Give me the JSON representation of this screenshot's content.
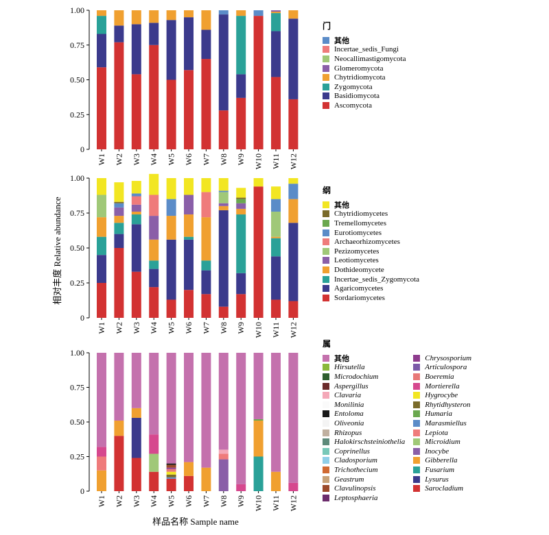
{
  "figure": {
    "ylabel": "相对丰度 Relative abundance",
    "xlabel": "样品名称 Sample name"
  },
  "chart_data": [
    {
      "type": "bar",
      "stacked": true,
      "title": "门",
      "categories": [
        "W1",
        "W2",
        "W3",
        "W4",
        "W5",
        "W6",
        "W7",
        "W8",
        "W9",
        "W10",
        "W11",
        "W12"
      ],
      "ylim": [
        0,
        1
      ],
      "yticks": [
        "0",
        "0.25",
        "0.50",
        "0.75",
        "1.00"
      ],
      "grid": false,
      "legend_position": "right",
      "series": [
        {
          "name": "Ascomycota",
          "color": "#d23232",
          "values": [
            0.59,
            0.77,
            0.54,
            0.75,
            0.5,
            0.57,
            0.65,
            0.28,
            0.37,
            0.96,
            0.52,
            0.36
          ]
        },
        {
          "name": "Basidiomycota",
          "color": "#3b3a8c",
          "values": [
            0.24,
            0.12,
            0.36,
            0.16,
            0.43,
            0.38,
            0.21,
            0.69,
            0.17,
            0.0,
            0.33,
            0.58
          ]
        },
        {
          "name": "Zygomycota",
          "color": "#2aa198",
          "values": [
            0.13,
            0.0,
            0.0,
            0.0,
            0.0,
            0.0,
            0.0,
            0.0,
            0.42,
            0.0,
            0.13,
            0.0
          ]
        },
        {
          "name": "Chytridiomycota",
          "color": "#f0a030",
          "values": [
            0.04,
            0.11,
            0.1,
            0.09,
            0.07,
            0.05,
            0.14,
            0.0,
            0.04,
            0.0,
            0.01,
            0.06
          ]
        },
        {
          "name": "Glomeromycota",
          "color": "#8a5fa8",
          "values": [
            0.0,
            0.0,
            0.0,
            0.0,
            0.0,
            0.0,
            0.0,
            0.0,
            0.0,
            0.0,
            0.01,
            0.0
          ]
        },
        {
          "name": "Neocallimastigomycota",
          "color": "#a0c878",
          "values": [
            0.0,
            0.0,
            0.0,
            0.0,
            0.0,
            0.0,
            0.0,
            0.0,
            0.0,
            0.0,
            0.0,
            0.0
          ]
        },
        {
          "name": "Incertae_sedis_Fungi",
          "color": "#ef7b7b",
          "values": [
            0.0,
            0.0,
            0.0,
            0.0,
            0.0,
            0.0,
            0.0,
            0.0,
            0.0,
            0.0,
            0.0,
            0.0
          ]
        },
        {
          "name": "其他",
          "color": "#5b8cc8",
          "values": [
            0.0,
            0.0,
            0.0,
            0.0,
            0.0,
            0.0,
            0.0,
            0.03,
            0.0,
            0.04,
            0.0,
            0.0
          ]
        }
      ]
    },
    {
      "type": "bar",
      "stacked": true,
      "title": "纲",
      "categories": [
        "W1",
        "W2",
        "W3",
        "W4",
        "W5",
        "W6",
        "W7",
        "W8",
        "W9",
        "W10",
        "W11",
        "W12"
      ],
      "ylim": [
        0,
        1
      ],
      "yticks": [
        "0",
        "0.25",
        "0.50",
        "0.75",
        "1.00"
      ],
      "grid": false,
      "legend_position": "right",
      "series": [
        {
          "name": "Sordariomycetes",
          "color": "#d23232",
          "values": [
            0.25,
            0.5,
            0.33,
            0.22,
            0.13,
            0.2,
            0.17,
            0.08,
            0.17,
            0.94,
            0.13,
            0.12
          ]
        },
        {
          "name": "Agaricomycetes",
          "color": "#3b3a8c",
          "values": [
            0.2,
            0.1,
            0.34,
            0.13,
            0.43,
            0.36,
            0.17,
            0.69,
            0.15,
            0.0,
            0.31,
            0.56
          ]
        },
        {
          "name": "Incertae_sedis_Zygomycota",
          "color": "#2aa198",
          "values": [
            0.13,
            0.08,
            0.07,
            0.06,
            0.0,
            0.02,
            0.07,
            0.0,
            0.42,
            0.0,
            0.13,
            0.0
          ]
        },
        {
          "name": "Dothideomycete",
          "color": "#f0a030",
          "values": [
            0.14,
            0.05,
            0.02,
            0.15,
            0.17,
            0.16,
            0.31,
            0.03,
            0.04,
            0.0,
            0.01,
            0.17
          ]
        },
        {
          "name": "Leotiomycetes",
          "color": "#8a5fa8",
          "values": [
            0.0,
            0.06,
            0.05,
            0.17,
            0.0,
            0.14,
            0.0,
            0.02,
            0.04,
            0.0,
            0.0,
            0.0
          ]
        },
        {
          "name": "Pezizomycetes",
          "color": "#a0c878",
          "values": [
            0.16,
            0.0,
            0.0,
            0.0,
            0.0,
            0.0,
            0.0,
            0.08,
            0.0,
            0.0,
            0.18,
            0.0
          ]
        },
        {
          "name": "Archaeorhizomycetes",
          "color": "#ef7b7b",
          "values": [
            0.0,
            0.0,
            0.06,
            0.15,
            0.0,
            0.0,
            0.18,
            0.0,
            0.0,
            0.0,
            0.0,
            0.0
          ]
        },
        {
          "name": "Eurotiomycetes",
          "color": "#5b8cc8",
          "values": [
            0.0,
            0.03,
            0.02,
            0.0,
            0.12,
            0.0,
            0.0,
            0.01,
            0.0,
            0.0,
            0.09,
            0.11
          ]
        },
        {
          "name": "Tremellomycetes",
          "color": "#6aa84f",
          "values": [
            0.0,
            0.0,
            0.0,
            0.0,
            0.0,
            0.0,
            0.0,
            0.0,
            0.03,
            0.0,
            0.0,
            0.0
          ]
        },
        {
          "name": "Chytridiomycetes",
          "color": "#7a6b2a",
          "values": [
            0.0,
            0.01,
            0.0,
            0.0,
            0.0,
            0.0,
            0.0,
            0.0,
            0.01,
            0.0,
            0.0,
            0.0
          ]
        },
        {
          "name": "其他",
          "color": "#f2e622",
          "values": [
            0.12,
            0.14,
            0.09,
            0.15,
            0.15,
            0.12,
            0.1,
            0.09,
            0.07,
            0.06,
            0.09,
            0.04
          ]
        }
      ]
    },
    {
      "type": "bar",
      "stacked": true,
      "title": "属",
      "categories": [
        "W1",
        "W2",
        "W3",
        "W4",
        "W5",
        "W6",
        "W7",
        "W8",
        "W9",
        "W10",
        "W11",
        "W12"
      ],
      "ylim": [
        0,
        1
      ],
      "yticks": [
        "0",
        "0.25",
        "0.50",
        "0.75",
        "1.00"
      ],
      "grid": false,
      "legend_position": "right",
      "series": [
        {
          "name": "Sarocladium",
          "color": "#d23232",
          "values": [
            0.0,
            0.4,
            0.24,
            0.14,
            0.09,
            0.11,
            0.0,
            0.0,
            0.0,
            0.0,
            0.0,
            0.0
          ]
        },
        {
          "name": "Lysurus",
          "color": "#3b3a8c",
          "values": [
            0.0,
            0.0,
            0.29,
            0.0,
            0.0,
            0.0,
            0.0,
            0.0,
            0.0,
            0.0,
            0.0,
            0.0
          ]
        },
        {
          "name": "Fusarium",
          "color": "#2aa198",
          "values": [
            0.0,
            0.0,
            0.0,
            0.0,
            0.0,
            0.0,
            0.0,
            0.0,
            0.0,
            0.25,
            0.0,
            0.0
          ]
        },
        {
          "name": "Gibberella",
          "color": "#f0a030",
          "values": [
            0.15,
            0.11,
            0.07,
            0.0,
            0.0,
            0.1,
            0.17,
            0.0,
            0.0,
            0.26,
            0.14,
            0.0
          ]
        },
        {
          "name": "Inocybe",
          "color": "#8a5fa8",
          "values": [
            0.0,
            0.0,
            0.0,
            0.0,
            0.0,
            0.0,
            0.0,
            0.23,
            0.0,
            0.0,
            0.0,
            0.0
          ]
        },
        {
          "name": "Microidium",
          "color": "#a0c878",
          "values": [
            0.0,
            0.0,
            0.0,
            0.13,
            0.0,
            0.0,
            0.0,
            0.0,
            0.0,
            0.0,
            0.0,
            0.0
          ]
        },
        {
          "name": "Lepiota",
          "color": "#ef7b7b",
          "values": [
            0.1,
            0.0,
            0.0,
            0.0,
            0.0,
            0.0,
            0.0,
            0.04,
            0.0,
            0.0,
            0.0,
            0.0
          ]
        },
        {
          "name": "Marasmiellus",
          "color": "#5b8cc8",
          "values": [
            0.0,
            0.0,
            0.0,
            0.0,
            0.01,
            0.0,
            0.0,
            0.0,
            0.0,
            0.0,
            0.0,
            0.0
          ]
        },
        {
          "name": "Humaria",
          "color": "#6aa84f",
          "values": [
            0.0,
            0.0,
            0.0,
            0.0,
            0.0,
            0.0,
            0.0,
            0.0,
            0.0,
            0.01,
            0.0,
            0.0
          ]
        },
        {
          "name": "Rhytidhysteron",
          "color": "#7a6b2a",
          "values": [
            0.0,
            0.0,
            0.0,
            0.0,
            0.02,
            0.0,
            0.0,
            0.0,
            0.0,
            0.0,
            0.0,
            0.0
          ]
        },
        {
          "name": "Hygrocybe",
          "color": "#f2e622",
          "values": [
            0.0,
            0.0,
            0.0,
            0.0,
            0.02,
            0.0,
            0.0,
            0.0,
            0.0,
            0.0,
            0.0,
            0.0
          ]
        },
        {
          "name": "Mortierella",
          "color": "#d6488e",
          "values": [
            0.07,
            0.0,
            0.0,
            0.14,
            0.0,
            0.0,
            0.0,
            0.0,
            0.05,
            0.0,
            0.0,
            0.06
          ]
        },
        {
          "name": "Boeremia",
          "color": "#e87878",
          "values": [
            0.0,
            0.0,
            0.0,
            0.0,
            0.02,
            0.0,
            0.0,
            0.0,
            0.0,
            0.0,
            0.0,
            0.0
          ]
        },
        {
          "name": "Articulospora",
          "color": "#7c5aa8",
          "values": [
            0.0,
            0.0,
            0.0,
            0.0,
            0.0,
            0.0,
            0.0,
            0.0,
            0.0,
            0.0,
            0.0,
            0.0
          ]
        },
        {
          "name": "Chrysosporium",
          "color": "#8e3c8e",
          "values": [
            0.0,
            0.0,
            0.0,
            0.0,
            0.01,
            0.0,
            0.0,
            0.0,
            0.0,
            0.0,
            0.0,
            0.0
          ]
        },
        {
          "name": "Leptosphaeria",
          "color": "#6c2c6c",
          "values": [
            0.0,
            0.0,
            0.0,
            0.0,
            0.0,
            0.0,
            0.0,
            0.0,
            0.0,
            0.0,
            0.0,
            0.0
          ]
        },
        {
          "name": "Clavulinopsis",
          "color": "#9c4a2a",
          "values": [
            0.0,
            0.0,
            0.0,
            0.0,
            0.02,
            0.0,
            0.0,
            0.0,
            0.0,
            0.0,
            0.0,
            0.0
          ]
        },
        {
          "name": "Geastrum",
          "color": "#c8a278",
          "values": [
            0.0,
            0.0,
            0.0,
            0.0,
            0.0,
            0.0,
            0.0,
            0.0,
            0.0,
            0.0,
            0.0,
            0.0
          ]
        },
        {
          "name": "Trichothecium",
          "color": "#d06a32",
          "values": [
            0.0,
            0.0,
            0.0,
            0.0,
            0.0,
            0.0,
            0.0,
            0.0,
            0.0,
            0.0,
            0.0,
            0.0
          ]
        },
        {
          "name": "Cladosporium",
          "color": "#90cfe8",
          "values": [
            0.0,
            0.0,
            0.0,
            0.0,
            0.0,
            0.0,
            0.0,
            0.0,
            0.0,
            0.0,
            0.0,
            0.0
          ]
        },
        {
          "name": "Coprinellus",
          "color": "#78c8b8",
          "values": [
            0.0,
            0.0,
            0.0,
            0.0,
            0.0,
            0.0,
            0.0,
            0.0,
            0.0,
            0.0,
            0.0,
            0.0
          ]
        },
        {
          "name": "Halokirschsteiniothelia",
          "color": "#5e8a7a",
          "values": [
            0.0,
            0.0,
            0.0,
            0.0,
            0.0,
            0.0,
            0.0,
            0.0,
            0.0,
            0.0,
            0.0,
            0.0
          ]
        },
        {
          "name": "Rhizopus",
          "color": "#c0b0a0",
          "values": [
            0.0,
            0.0,
            0.0,
            0.0,
            0.0,
            0.0,
            0.0,
            0.0,
            0.0,
            0.0,
            0.0,
            0.0
          ]
        },
        {
          "name": "Oliveonia",
          "color": "#f4f4f4",
          "values": [
            0.0,
            0.0,
            0.0,
            0.0,
            0.0,
            0.0,
            0.0,
            0.0,
            0.0,
            0.0,
            0.0,
            0.0
          ]
        },
        {
          "name": "Entoloma",
          "color": "#1a1a1a",
          "values": [
            0.0,
            0.0,
            0.0,
            0.0,
            0.01,
            0.0,
            0.0,
            0.0,
            0.0,
            0.0,
            0.0,
            0.0
          ]
        },
        {
          "name": "Monilinia",
          "color": "#fafafa",
          "values": [
            0.0,
            0.0,
            0.0,
            0.0,
            0.0,
            0.0,
            0.0,
            0.0,
            0.0,
            0.0,
            0.0,
            0.0
          ]
        },
        {
          "name": "Clavaria",
          "color": "#f4a8b8",
          "values": [
            0.0,
            0.0,
            0.0,
            0.0,
            0.0,
            0.0,
            0.0,
            0.03,
            0.0,
            0.0,
            0.0,
            0.0
          ]
        },
        {
          "name": "Aspergillus",
          "color": "#6a2a2a",
          "values": [
            0.0,
            0.0,
            0.0,
            0.0,
            0.0,
            0.0,
            0.0,
            0.0,
            0.0,
            0.0,
            0.0,
            0.0
          ]
        },
        {
          "name": "Microdochium",
          "color": "#2e5e2e",
          "values": [
            0.0,
            0.0,
            0.0,
            0.0,
            0.0,
            0.0,
            0.0,
            0.0,
            0.0,
            0.0,
            0.0,
            0.0
          ]
        },
        {
          "name": "Hirsutella",
          "color": "#8ab83a",
          "values": [
            0.0,
            0.0,
            0.0,
            0.0,
            0.0,
            0.0,
            0.0,
            0.0,
            0.0,
            0.0,
            0.0,
            0.0
          ]
        },
        {
          "name": "其他",
          "color": "#c471ad",
          "values": [
            0.68,
            0.49,
            0.4,
            0.59,
            0.8,
            0.79,
            0.83,
            0.7,
            0.95,
            0.48,
            0.86,
            0.94
          ]
        }
      ],
      "legend_columns": [
        [
          "其他",
          "Hirsutella",
          "Microdochium",
          "Aspergillus",
          "Clavaria",
          "Monilinia",
          "Entoloma",
          "Oliveonia",
          "Rhizopus",
          "Halokirschsteiniothelia",
          "Coprinellus",
          "Cladosporium",
          "Trichothecium",
          "Geastrum",
          "Clavulinopsis",
          "Leptosphaeria"
        ],
        [
          "Chrysosporium",
          "Articulospora",
          "Boeremia",
          "Mortierella",
          "Hygrocybe",
          "Rhytidhysteron",
          "Humaria",
          "Marasmiellus",
          "Lepiota",
          "Microidium",
          "Inocybe",
          "Gibberella",
          "Fusarium",
          "Lysurus",
          "Sarocladium"
        ]
      ]
    }
  ]
}
